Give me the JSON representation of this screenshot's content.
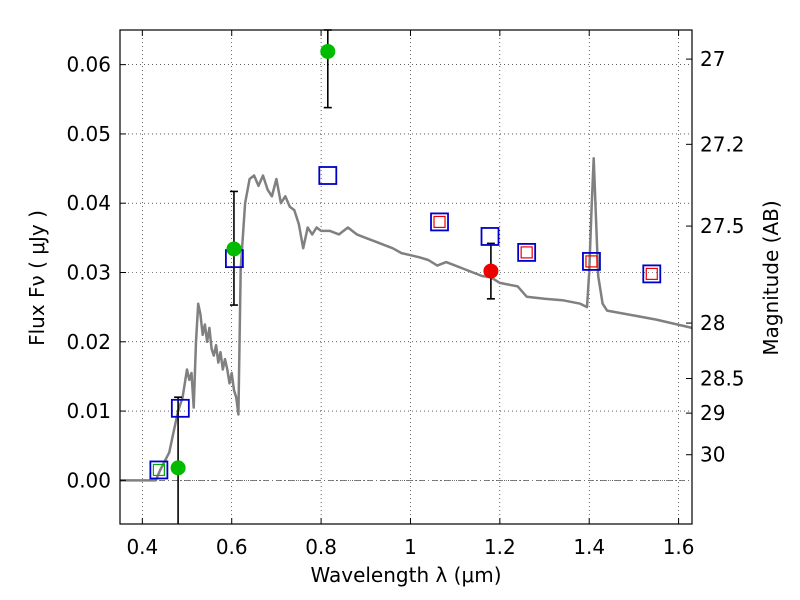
{
  "chart_data": {
    "type": "scatter",
    "xlabel": "Wavelength  λ (μm)",
    "ylabel": "Flux  Fν  ( μJy )",
    "ylabel_right": "Magnitude (AB)",
    "xlim": [
      0.35,
      1.63
    ],
    "ylim": [
      -0.0063,
      0.065
    ],
    "grid": true,
    "x_ticks": [
      0.4,
      0.6,
      0.8,
      1.0,
      1.2,
      1.4,
      1.6
    ],
    "x_tick_labels": [
      "0.4",
      "0.6",
      "0.8",
      "1",
      "1.2",
      "1.4",
      "1.6"
    ],
    "y_ticks": [
      0.0,
      0.01,
      0.02,
      0.03,
      0.04,
      0.05,
      0.06
    ],
    "y_tick_labels": [
      "0.00",
      "0.01",
      "0.02",
      "0.03",
      "0.04",
      "0.05",
      "0.06"
    ],
    "right_ticks": [
      {
        "flux": 0.0608,
        "label": "27"
      },
      {
        "flux": 0.0485,
        "label": "27.2"
      },
      {
        "flux": 0.0367,
        "label": "27.5"
      },
      {
        "flux": 0.0227,
        "label": "28"
      },
      {
        "flux": 0.0147,
        "label": "28.5"
      },
      {
        "flux": 0.0097,
        "label": "29"
      },
      {
        "flux": 0.0037,
        "label": "30"
      }
    ],
    "series": [
      {
        "name": "model SED",
        "kind": "line",
        "color": "#808080",
        "x": [
          0.35,
          0.43,
          0.44,
          0.46,
          0.47,
          0.48,
          0.49,
          0.5,
          0.505,
          0.51,
          0.515,
          0.52,
          0.525,
          0.53,
          0.535,
          0.54,
          0.545,
          0.55,
          0.555,
          0.56,
          0.565,
          0.57,
          0.575,
          0.58,
          0.585,
          0.59,
          0.595,
          0.6,
          0.605,
          0.61,
          0.615,
          0.62,
          0.63,
          0.64,
          0.65,
          0.66,
          0.67,
          0.68,
          0.69,
          0.7,
          0.71,
          0.72,
          0.73,
          0.74,
          0.75,
          0.76,
          0.77,
          0.78,
          0.79,
          0.8,
          0.82,
          0.84,
          0.86,
          0.88,
          0.9,
          0.92,
          0.94,
          0.96,
          0.98,
          1.0,
          1.02,
          1.04,
          1.06,
          1.08,
          1.1,
          1.12,
          1.14,
          1.16,
          1.18,
          1.2,
          1.24,
          1.26,
          1.3,
          1.34,
          1.38,
          1.395,
          1.4,
          1.405,
          1.41,
          1.42,
          1.43,
          1.44,
          1.5,
          1.55,
          1.63
        ],
        "y": [
          0.0,
          0.0,
          0.0015,
          0.004,
          0.007,
          0.01,
          0.012,
          0.016,
          0.0145,
          0.0155,
          0.0105,
          0.02,
          0.0255,
          0.024,
          0.021,
          0.0225,
          0.02,
          0.022,
          0.019,
          0.018,
          0.0195,
          0.017,
          0.0185,
          0.016,
          0.0175,
          0.016,
          0.014,
          0.0155,
          0.013,
          0.012,
          0.0095,
          0.0305,
          0.04,
          0.0435,
          0.044,
          0.0425,
          0.044,
          0.042,
          0.041,
          0.0435,
          0.04,
          0.041,
          0.0395,
          0.039,
          0.037,
          0.0335,
          0.0365,
          0.0355,
          0.0365,
          0.036,
          0.036,
          0.0355,
          0.0365,
          0.0355,
          0.035,
          0.0345,
          0.034,
          0.0335,
          0.0328,
          0.0325,
          0.0322,
          0.0318,
          0.031,
          0.0315,
          0.031,
          0.0305,
          0.03,
          0.0295,
          0.0293,
          0.0285,
          0.028,
          0.0265,
          0.0262,
          0.026,
          0.0255,
          0.025,
          0.03,
          0.039,
          0.0465,
          0.0295,
          0.0255,
          0.0245,
          0.0238,
          0.0232,
          0.022
        ]
      },
      {
        "name": "observed (green)",
        "kind": "points",
        "color": "#00bb00",
        "points": [
          {
            "x": 0.48,
            "y": 0.0018,
            "err_low": -0.0065,
            "err_high": 0.012
          },
          {
            "x": 0.605,
            "y": 0.0334,
            "err_low": 0.0253,
            "err_high": 0.0417
          },
          {
            "x": 0.815,
            "y": 0.0619,
            "err_low": 0.0538,
            "err_high": 0.065
          }
        ]
      },
      {
        "name": "observed (red)",
        "kind": "points",
        "color": "#ee0000",
        "points": [
          {
            "x": 1.18,
            "y": 0.0302,
            "err_low": 0.0262,
            "err_high": 0.0342
          }
        ]
      },
      {
        "name": "model photometry (blue)",
        "kind": "squares",
        "color": "#0000cc",
        "points": [
          {
            "x": 0.437,
            "y": 0.0015
          },
          {
            "x": 0.485,
            "y": 0.0104
          },
          {
            "x": 0.606,
            "y": 0.032
          },
          {
            "x": 0.815,
            "y": 0.044
          },
          {
            "x": 1.065,
            "y": 0.0373
          },
          {
            "x": 1.178,
            "y": 0.0352
          },
          {
            "x": 1.26,
            "y": 0.0329
          },
          {
            "x": 1.405,
            "y": 0.0316
          },
          {
            "x": 1.54,
            "y": 0.0298
          }
        ]
      },
      {
        "name": "model photometry (inner small squares)",
        "kind": "small-squares",
        "points": [
          {
            "x": 0.437,
            "y": 0.0015,
            "color": "#00aa00"
          },
          {
            "x": 1.065,
            "y": 0.0373,
            "color": "#ee0000"
          },
          {
            "x": 1.26,
            "y": 0.0329,
            "color": "#ee0000"
          },
          {
            "x": 1.405,
            "y": 0.0316,
            "color": "#ee0000"
          },
          {
            "x": 1.54,
            "y": 0.0298,
            "color": "#ee0000"
          }
        ]
      }
    ],
    "zero_line": 0.0
  }
}
